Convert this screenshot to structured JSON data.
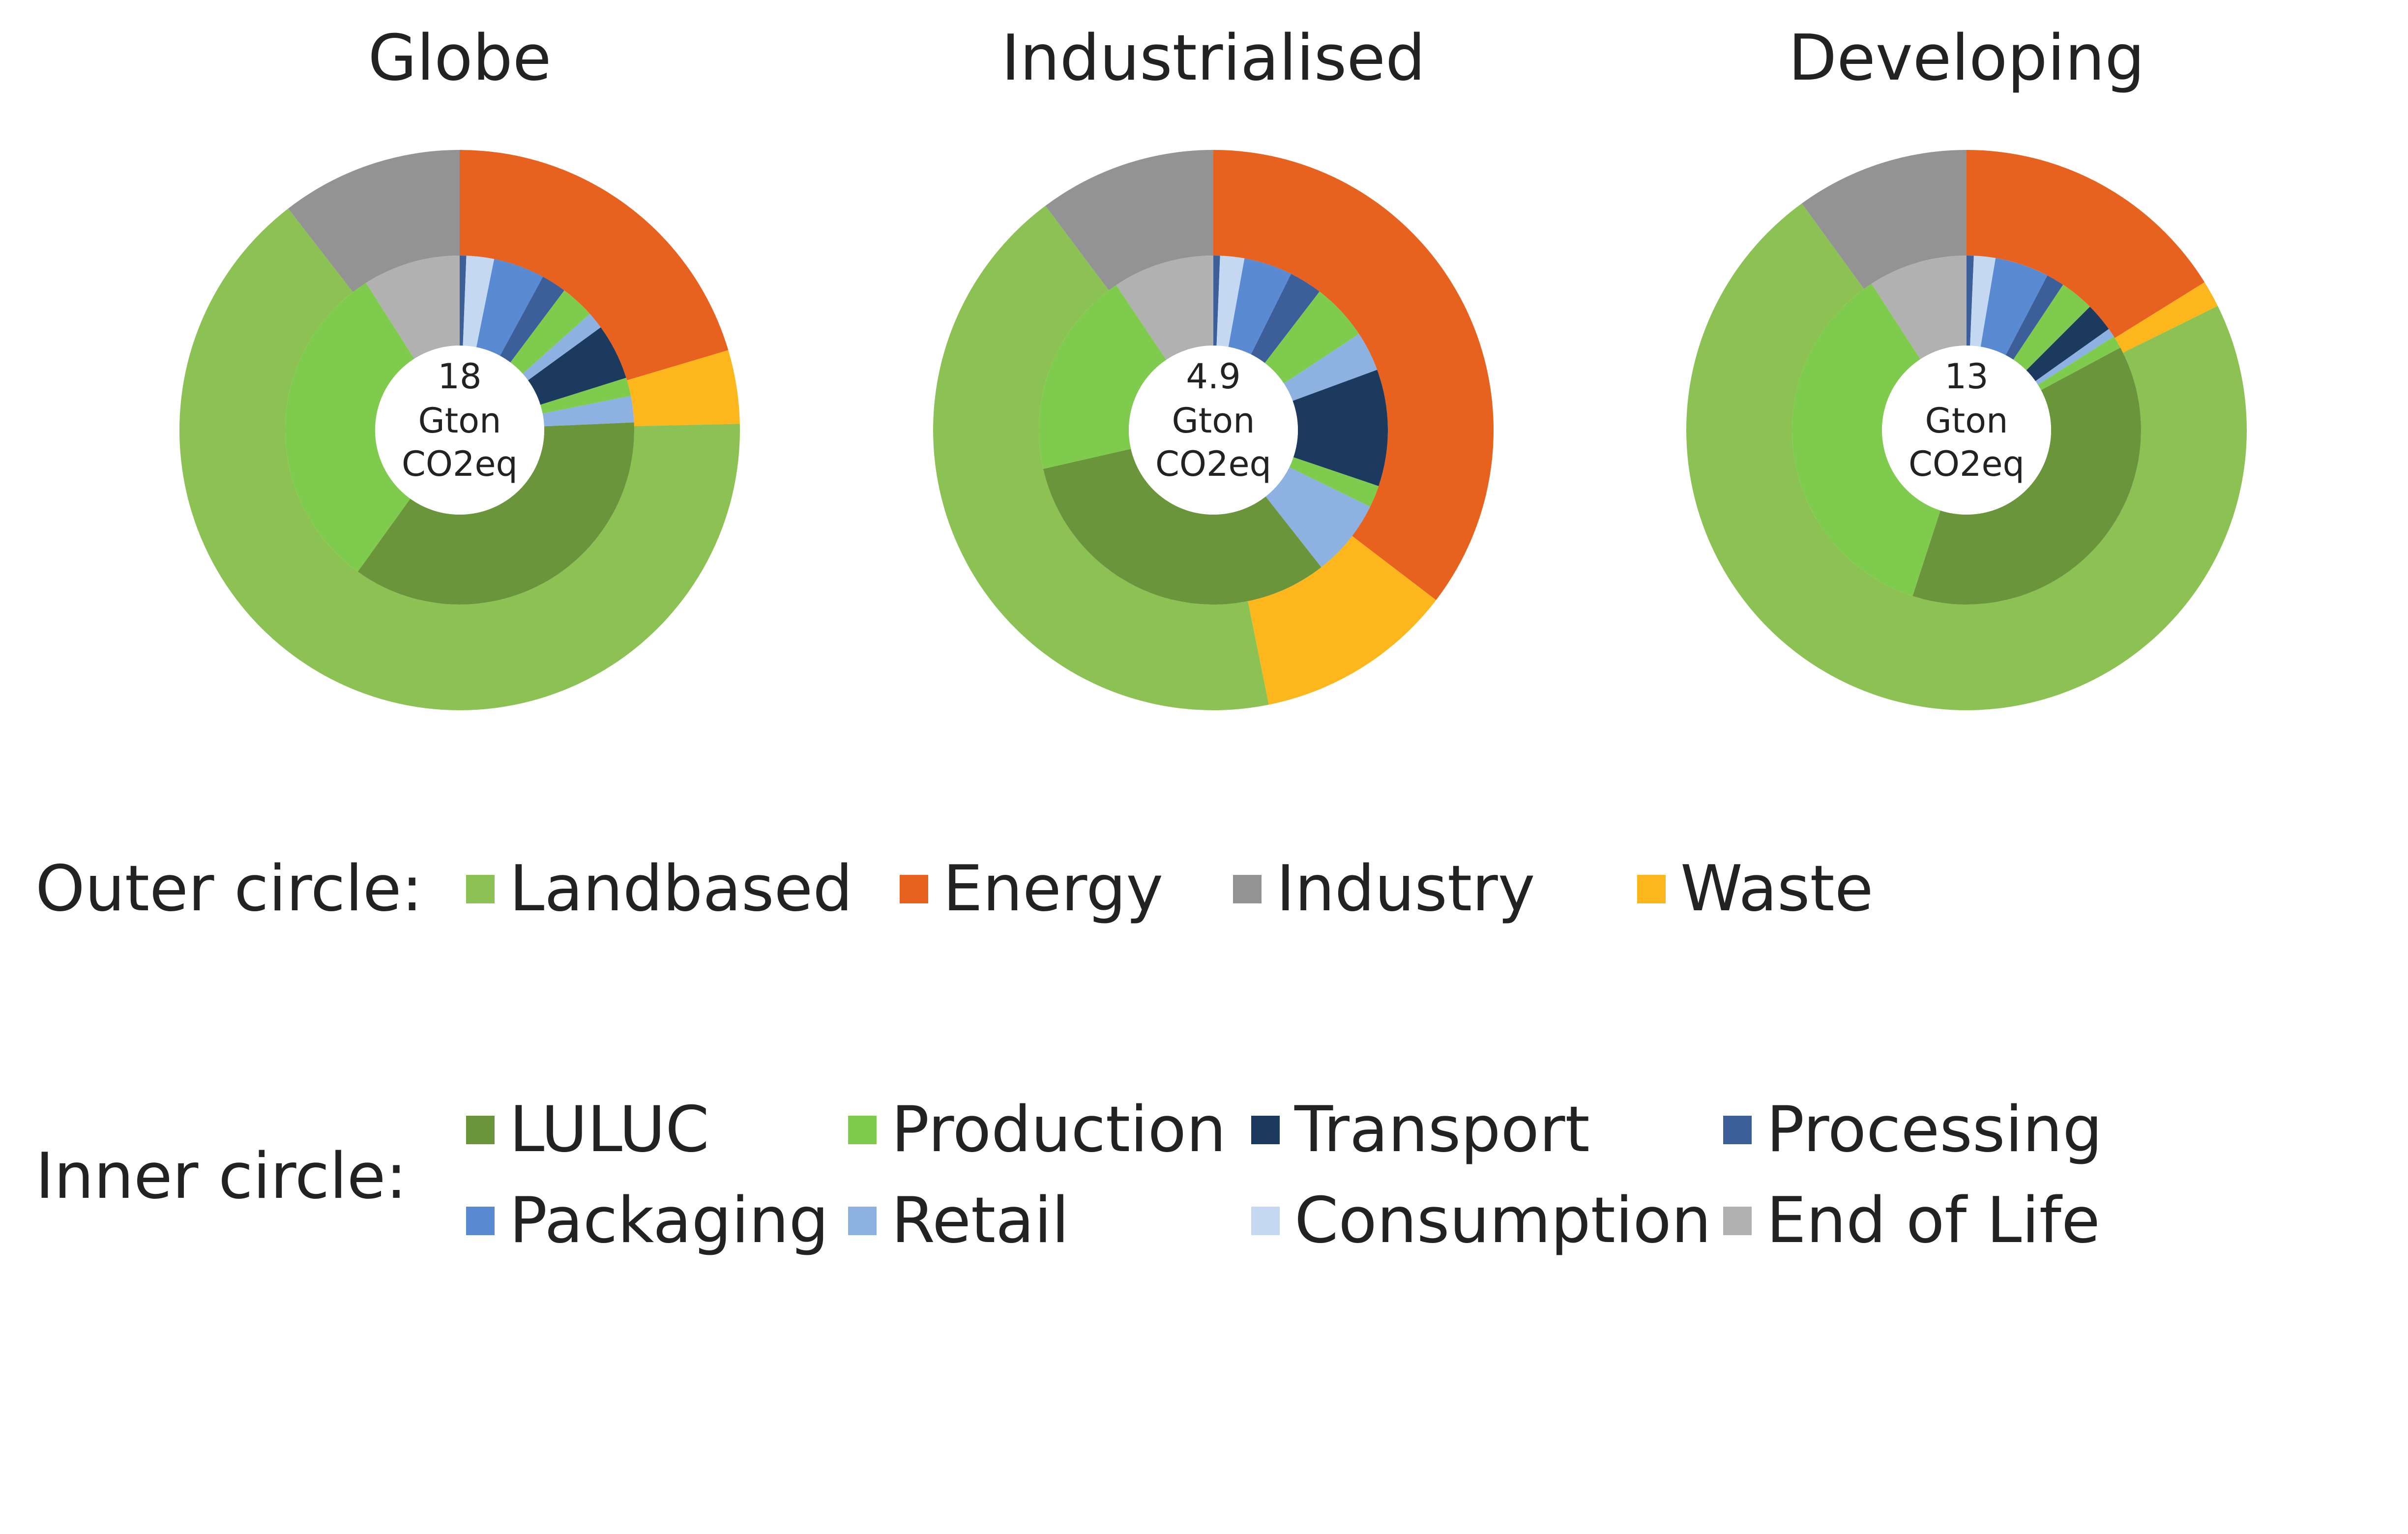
{
  "chart_data": [
    {
      "type": "pie",
      "title": "Globe",
      "center_label": [
        "18",
        "Gton",
        "CO2eq"
      ],
      "outer": [
        {
          "name": "Energy",
          "value": 3.6
        },
        {
          "name": "Waste",
          "value": 0.75
        },
        {
          "name": "Landbased",
          "value": 11.45
        },
        {
          "name": "Industry",
          "value": 1.85
        }
      ],
      "inner": [
        {
          "name": "Processing",
          "value": 0.1,
          "color_key": "Processing"
        },
        {
          "name": "Consumption",
          "value": 0.42,
          "color_key": "Consumption"
        },
        {
          "name": "Packaging",
          "value": 0.78,
          "color_key": "Packaging"
        },
        {
          "name": "Processing",
          "value": 0.38,
          "color_key": "Processing"
        },
        {
          "name": "Production",
          "value": 0.52,
          "color_key": "Production"
        },
        {
          "name": "Retail",
          "value": 0.26,
          "color_key": "Retail"
        },
        {
          "name": "Transport",
          "value": 0.85,
          "color_key": "Transport"
        },
        {
          "name": "Production",
          "value": 0.28,
          "color_key": "Production"
        },
        {
          "name": "Retail",
          "value": 0.4,
          "color_key": "Retail"
        },
        {
          "name": "LULUC",
          "value": 5.85,
          "color_key": "LULUC"
        },
        {
          "name": "Production",
          "value": 5.1,
          "color_key": "Production"
        },
        {
          "name": "End of Life",
          "value": 1.48,
          "color_key": "End of Life"
        }
      ]
    },
    {
      "type": "pie",
      "title": "Industrialised",
      "center_label": [
        "4.9",
        "Gton",
        "CO2eq"
      ],
      "outer": [
        {
          "name": "Energy",
          "value": 1.73
        },
        {
          "name": "Waste",
          "value": 0.56
        },
        {
          "name": "Landbased",
          "value": 2.1
        },
        {
          "name": "Industry",
          "value": 0.5
        }
      ],
      "inner": [
        {
          "name": "Processing",
          "value": 0.03,
          "color_key": "Processing"
        },
        {
          "name": "Consumption",
          "value": 0.11,
          "color_key": "Consumption"
        },
        {
          "name": "Packaging",
          "value": 0.22,
          "color_key": "Packaging"
        },
        {
          "name": "Processing",
          "value": 0.15,
          "color_key": "Processing"
        },
        {
          "name": "Production",
          "value": 0.26,
          "color_key": "Production"
        },
        {
          "name": "Retail",
          "value": 0.18,
          "color_key": "Retail"
        },
        {
          "name": "Transport",
          "value": 0.53,
          "color_key": "Transport"
        },
        {
          "name": "Production",
          "value": 0.1,
          "color_key": "Production"
        },
        {
          "name": "Retail",
          "value": 0.35,
          "color_key": "Retail"
        },
        {
          "name": "LULUC",
          "value": 1.57,
          "color_key": "LULUC"
        },
        {
          "name": "Production",
          "value": 0.94,
          "color_key": "Production"
        },
        {
          "name": "End of Life",
          "value": 0.46,
          "color_key": "End of Life"
        }
      ]
    },
    {
      "type": "pie",
      "title": "Developing",
      "center_label": [
        "13",
        "Gton",
        "CO2eq"
      ],
      "outer": [
        {
          "name": "Energy",
          "value": 2.1
        },
        {
          "name": "Waste",
          "value": 0.2
        },
        {
          "name": "Landbased",
          "value": 9.4
        },
        {
          "name": "Industry",
          "value": 1.3
        }
      ],
      "inner": [
        {
          "name": "Processing",
          "value": 0.08,
          "color_key": "Processing"
        },
        {
          "name": "Consumption",
          "value": 0.24,
          "color_key": "Consumption"
        },
        {
          "name": "Packaging",
          "value": 0.6,
          "color_key": "Packaging"
        },
        {
          "name": "Processing",
          "value": 0.2,
          "color_key": "Processing"
        },
        {
          "name": "Production",
          "value": 0.38,
          "color_key": "Production"
        },
        {
          "name": "Transport",
          "value": 0.32,
          "color_key": "Transport"
        },
        {
          "name": "Retail",
          "value": 0.1,
          "color_key": "Retail"
        },
        {
          "name": "Production",
          "value": 0.14,
          "color_key": "Production"
        },
        {
          "name": "LULUC",
          "value": 4.54,
          "color_key": "LULUC"
        },
        {
          "name": "Production",
          "value": 4.3,
          "color_key": "Production"
        },
        {
          "name": "End of Life",
          "value": 1.1,
          "color_key": "End of Life"
        }
      ]
    }
  ],
  "colors": {
    "Landbased": "#8BC253",
    "Energy": "#E8621F",
    "Industry": "#939393",
    "Waste": "#FDB71C",
    "LULUC": "#6A953B",
    "Production": "#7FCB4E",
    "Transport": "#1C3A5E",
    "Processing": "#3C5F9A",
    "Packaging": "#5A8AD2",
    "Retail": "#8DB2E2",
    "Consumption": "#C4D8F2",
    "End of Life": "#B1B1B1"
  },
  "legend": {
    "outer": {
      "title": "Outer circle:",
      "items": [
        "Landbased",
        "Energy",
        "Industry",
        "Waste"
      ]
    },
    "inner": {
      "title": "Inner circle:",
      "items": [
        "LULUC",
        "Production",
        "Transport",
        "Processing",
        "Packaging",
        "Retail",
        "Consumption",
        "End of Life"
      ]
    }
  }
}
